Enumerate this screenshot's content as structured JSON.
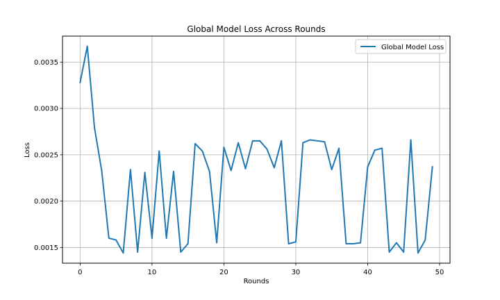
{
  "chart_data": {
    "type": "line",
    "title": "Global Model Loss Across Rounds",
    "xlabel": "Rounds",
    "ylabel": "Loss",
    "xlim": [
      -2.45,
      51.45
    ],
    "ylim": [
      0.00133,
      0.00378
    ],
    "xticks": [
      0,
      10,
      20,
      30,
      40,
      50
    ],
    "yticks": [
      0.0015,
      0.002,
      0.0025,
      0.003,
      0.0035
    ],
    "ytick_labels": [
      "0.0015",
      "0.0020",
      "0.0025",
      "0.0030",
      "0.0035"
    ],
    "grid": true,
    "legend_position": "top-right",
    "series": [
      {
        "name": "Global Model Loss",
        "color": "#1f77b4",
        "x": [
          0,
          1,
          2,
          3,
          4,
          5,
          6,
          7,
          8,
          9,
          10,
          11,
          12,
          13,
          14,
          15,
          16,
          17,
          18,
          19,
          20,
          21,
          22,
          23,
          24,
          25,
          26,
          27,
          28,
          29,
          30,
          31,
          32,
          33,
          34,
          35,
          36,
          37,
          38,
          39,
          40,
          41,
          42,
          43,
          44,
          45,
          46,
          47,
          48,
          49
        ],
        "values": [
          0.00328,
          0.00367,
          0.00279,
          0.00233,
          0.0016,
          0.00158,
          0.00144,
          0.00234,
          0.00145,
          0.00231,
          0.0016,
          0.00254,
          0.0016,
          0.00232,
          0.00145,
          0.00154,
          0.00262,
          0.00254,
          0.00232,
          0.00155,
          0.00258,
          0.00233,
          0.00263,
          0.00235,
          0.00265,
          0.00265,
          0.00256,
          0.00236,
          0.00265,
          0.00154,
          0.00156,
          0.00263,
          0.00266,
          0.00265,
          0.00264,
          0.00234,
          0.00257,
          0.00154,
          0.00154,
          0.00155,
          0.00237,
          0.00255,
          0.00257,
          0.00145,
          0.00155,
          0.00145,
          0.00266,
          0.00144,
          0.00158,
          0.00237
        ]
      }
    ]
  }
}
